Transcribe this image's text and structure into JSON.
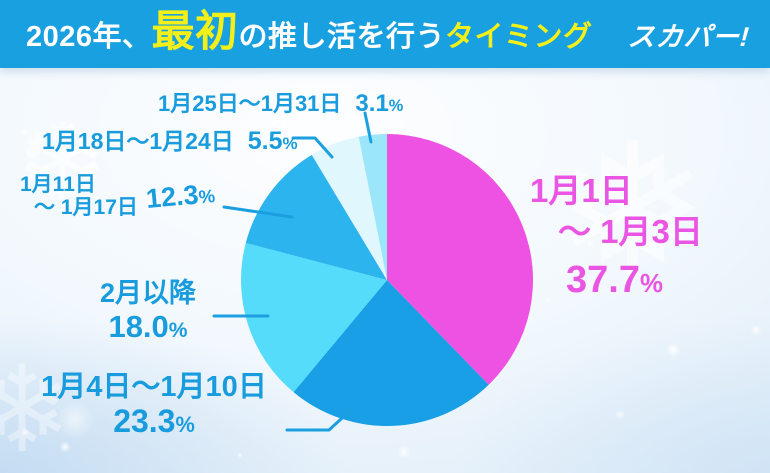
{
  "header": {
    "title_part1": "2026年、",
    "title_emphasis": "最初",
    "title_part2": "の推し活を行う",
    "title_part3": "タイミング",
    "logo": "スカパー!"
  },
  "percent_sign": "%",
  "decor": {
    "snowflake_a": "❅",
    "snowflake_b": "❆",
    "snowflake_c": "❄"
  },
  "colors": {
    "header_bg": "#18a0e0",
    "title_yellow": "#f2ef19",
    "label_blue": "#189cdd",
    "label_magenta": "#ea55e3",
    "leader_line": "#1b9fe0"
  },
  "chart_data": {
    "type": "pie",
    "title": "2026年、最初の推し活を行うタイミング",
    "start_angle_deg": 0,
    "direction": "clockwise",
    "legend_position": "around-slices",
    "segments": [
      {
        "label": "1月1日〜1月3日",
        "value": 37.7,
        "color": "#ee52e2"
      },
      {
        "label": "1月4日〜1月10日",
        "value": 23.3,
        "color": "#189fe6"
      },
      {
        "label": "2月以降",
        "value": 18.0,
        "color": "#55dcfa"
      },
      {
        "label": "1月11日〜1月17日",
        "value": 12.3,
        "color": "#2cb4ee"
      },
      {
        "label": "1月18日〜1月24日",
        "value": 5.5,
        "color": "#dff7fd"
      },
      {
        "label": "1月25日〜1月31日",
        "value": 3.1,
        "color": "#9be6f9"
      }
    ]
  },
  "annotations": [
    {
      "text": "1月25日〜1月31日",
      "pct": "3.1"
    },
    {
      "text": "1月18日〜1月24日",
      "pct": "5.5"
    },
    {
      "line1": "1月11日",
      "line2": "〜 1月17日",
      "pct": "12.3"
    },
    {
      "text": "2月以降",
      "pct": "18.0"
    },
    {
      "text": "1月4日〜1月10日",
      "pct": "23.3"
    },
    {
      "line1": "1月1日",
      "line2": "〜 1月3日",
      "pct": "37.7"
    }
  ]
}
